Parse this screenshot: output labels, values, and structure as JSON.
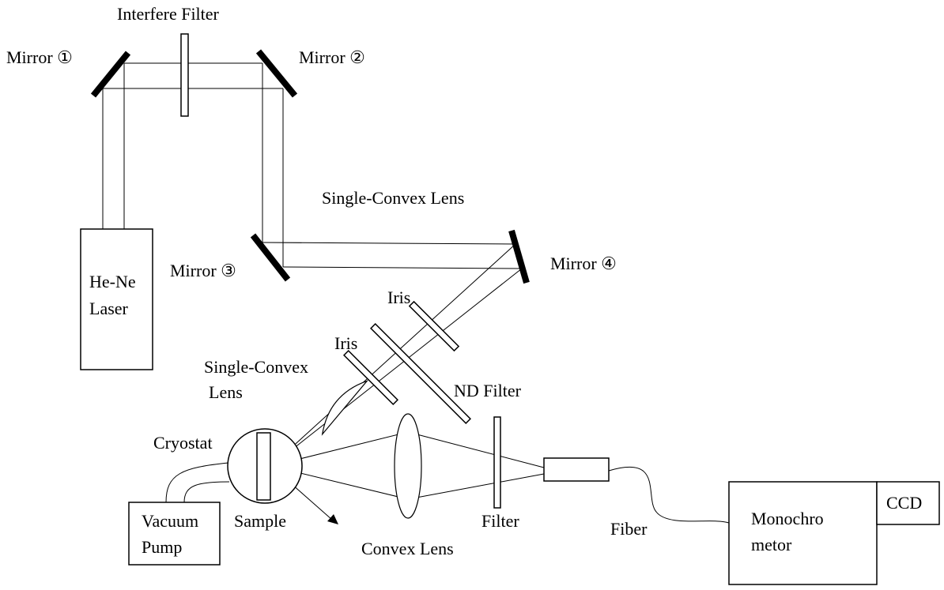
{
  "diagram": {
    "labels": {
      "interfere_filter": "Interfere Filter",
      "mirror1": "Mirror ①",
      "mirror2": "Mirror ②",
      "mirror3": "Mirror ③",
      "mirror4": "Mirror ④",
      "single_convex_lens_top": "Single-Convex Lens",
      "laser_line1": "He-Ne",
      "laser_line2": "Laser",
      "iris_upper": "Iris",
      "iris_lower": "Iris",
      "single_convex_lens_line1": "Single-Convex",
      "single_convex_lens_line2": "Lens",
      "nd_filter": "ND Filter",
      "cryostat": "Cryostat",
      "sample": "Sample",
      "vacuum_pump_line1": "Vacuum",
      "vacuum_pump_line2": "Pump",
      "convex_lens": "Convex Lens",
      "filter": "Filter",
      "fiber": "Fiber",
      "monochromator_line1": "Monochro",
      "monochromator_line2": "metor",
      "ccd": "CCD"
    }
  }
}
